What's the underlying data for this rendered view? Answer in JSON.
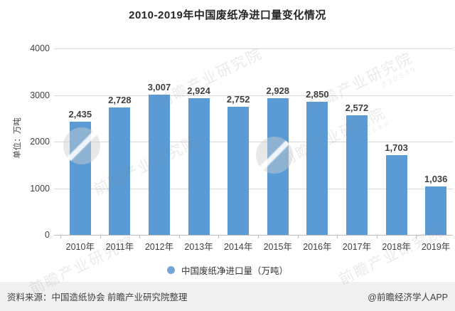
{
  "title": "2010-2019年中国废纸净进口量变化情况",
  "chart_data": {
    "type": "bar",
    "title": "2010-2019年中国废纸净进口量变化情况",
    "xlabel": "",
    "ylabel": "单位：万吨",
    "categories": [
      "2010年",
      "2011年",
      "2012年",
      "2013年",
      "2014年",
      "2015年",
      "2016年",
      "2017年",
      "2018年",
      "2019年"
    ],
    "values": [
      2435,
      2728,
      3007,
      2924,
      2752,
      2928,
      2850,
      2572,
      1703,
      1036
    ],
    "value_labels": [
      "2,435",
      "2,728",
      "3,007",
      "2,924",
      "2,752",
      "2,928",
      "2,850",
      "2,572",
      "1,703",
      "1,036"
    ],
    "ylim": [
      0,
      4000
    ],
    "yticks": [
      0,
      1000,
      2000,
      3000,
      4000
    ],
    "grid": true,
    "legend_position": "bottom",
    "series_name": "中国废纸净进口量（万吨）"
  },
  "legend": {
    "label": "中国废纸净进口量（万吨）",
    "dot_color": "#74A7D8"
  },
  "footer": {
    "source": "资料来源：中国造纸协会 前瞻产业研究院整理",
    "credit": "@前瞻经济学人APP"
  },
  "watermark": {
    "text": "前瞻产业研究院",
    "sub": "830599"
  },
  "colors": {
    "bar": "#5B9BD5",
    "grid": "#D9D9D9",
    "axis": "#BFBFBF",
    "text": "#404040",
    "title": "#262626",
    "footer_bg": "#F0F0F0"
  }
}
